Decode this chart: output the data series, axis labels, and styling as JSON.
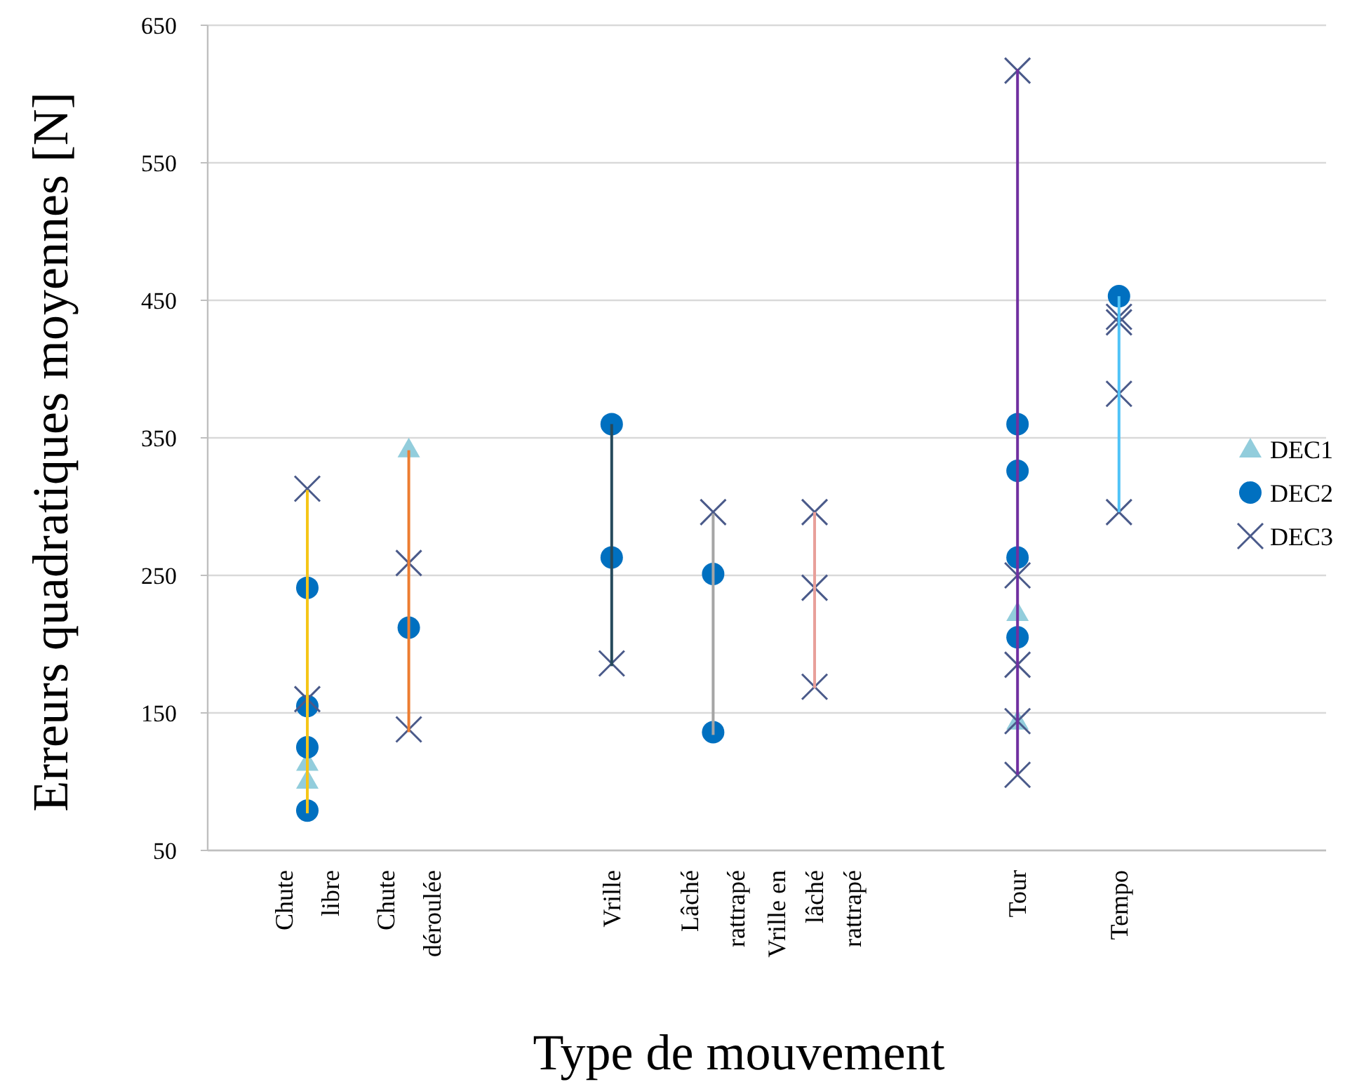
{
  "chart_data": {
    "type": "scatter",
    "xlabel": "Type de mouvement",
    "ylabel": "Erreurs quadratiques moyennes  [N]",
    "categories": [
      "Chute libre",
      "Chute déroulée",
      null,
      "Vrille",
      "Lâché rattrapé",
      "Vrille en lâché rattrapé",
      null,
      "Tour",
      "Tempo"
    ],
    "ylim": [
      50,
      650
    ],
    "yticks": [
      50,
      150,
      250,
      350,
      450,
      550,
      650
    ],
    "grid": "y",
    "legend": "right",
    "series": [
      {
        "type": "bar",
        "base": [
          77,
          136,
          null,
          184,
          134,
          168,
          null,
          105,
          296
        ],
        "values": [
          235,
          205,
          null,
          176,
          161,
          128,
          null,
          513,
          157
        ],
        "colors": [
          "#f5c518",
          "#ed7d31",
          null,
          "#264a5c",
          "#a5a5a5",
          "#e8a09a",
          null,
          "#7030a0",
          "#4fc3f7"
        ]
      },
      {
        "name": "DEC1",
        "marker": "triangle",
        "color": "#92cddc",
        "x": [
          "Chute libre",
          "Chute libre",
          "Chute déroulée",
          "Tour",
          "Tour"
        ],
        "values": [
          114,
          101,
          342,
          223,
          144
        ]
      },
      {
        "name": "DEC2",
        "marker": "circle",
        "color": "#0070c0",
        "x": [
          "Chute libre",
          "Chute libre",
          "Chute libre",
          "Chute libre",
          "Chute déroulée",
          "Vrille",
          "Vrille",
          "Lâché rattrapé",
          "Lâché rattrapé",
          "Tour",
          "Tour",
          "Tour",
          "Tour",
          "Tempo"
        ],
        "values": [
          241,
          155,
          125,
          79,
          212,
          360,
          263,
          251,
          136,
          360,
          326,
          263,
          205,
          453
        ]
      },
      {
        "name": "DEC3",
        "marker": "cross",
        "color": "#4a5a8a",
        "x": [
          "Chute libre",
          "Chute libre",
          "Chute déroulée",
          "Chute déroulée",
          "Vrille",
          "Lâché rattrapé",
          "Vrille en lâché rattrapé",
          "Vrille en lâché rattrapé",
          "Vrille en lâché rattrapé",
          "Tour",
          "Tour",
          "Tour",
          "Tour",
          "Tour",
          "Tempo",
          "Tempo",
          "Tempo",
          "Tempo"
        ],
        "values": [
          313,
          160,
          259,
          138,
          186,
          296,
          296,
          241,
          169,
          617,
          250,
          185,
          144,
          105,
          438,
          434,
          382,
          296
        ]
      }
    ]
  }
}
